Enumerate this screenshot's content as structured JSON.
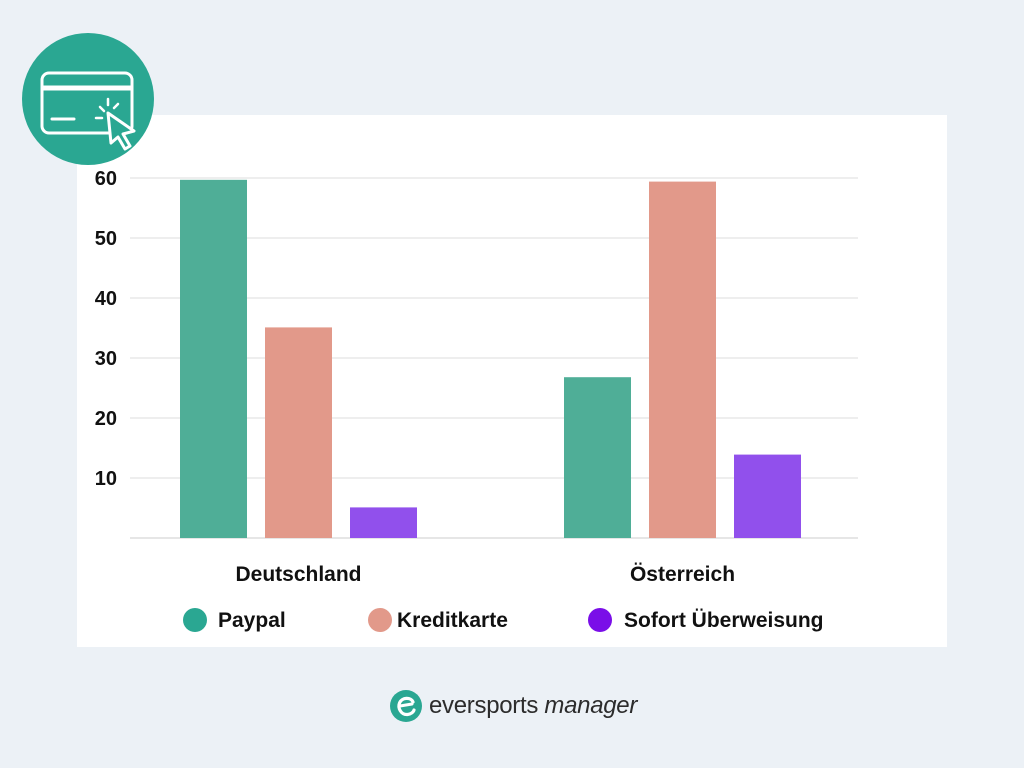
{
  "chart_data": {
    "type": "bar",
    "categories": [
      "Deutschland",
      "Österreich"
    ],
    "series": [
      {
        "name": "Paypal",
        "values": [
          59.7,
          26.8
        ],
        "color": "#4fae97"
      },
      {
        "name": "Kreditkarte",
        "values": [
          35.1,
          59.4
        ],
        "color": "#e2998a"
      },
      {
        "name": "Sofort Überweisung",
        "values": [
          5.1,
          13.9
        ],
        "color": "#9150ec"
      }
    ],
    "yticks": [
      10,
      20,
      30,
      40,
      50,
      60
    ],
    "ylim": [
      0,
      60
    ],
    "grid": true,
    "legend": {
      "position": "bottom",
      "marker_colors": [
        "#2aa792",
        "#e2998a",
        "#7a0ee8"
      ]
    }
  },
  "badge": {
    "icon": "credit-card-click-icon",
    "color": "#2aa792"
  },
  "brand": {
    "name_primary": "eversports",
    "name_secondary": "manager",
    "icon": "eversports-logo-icon"
  }
}
